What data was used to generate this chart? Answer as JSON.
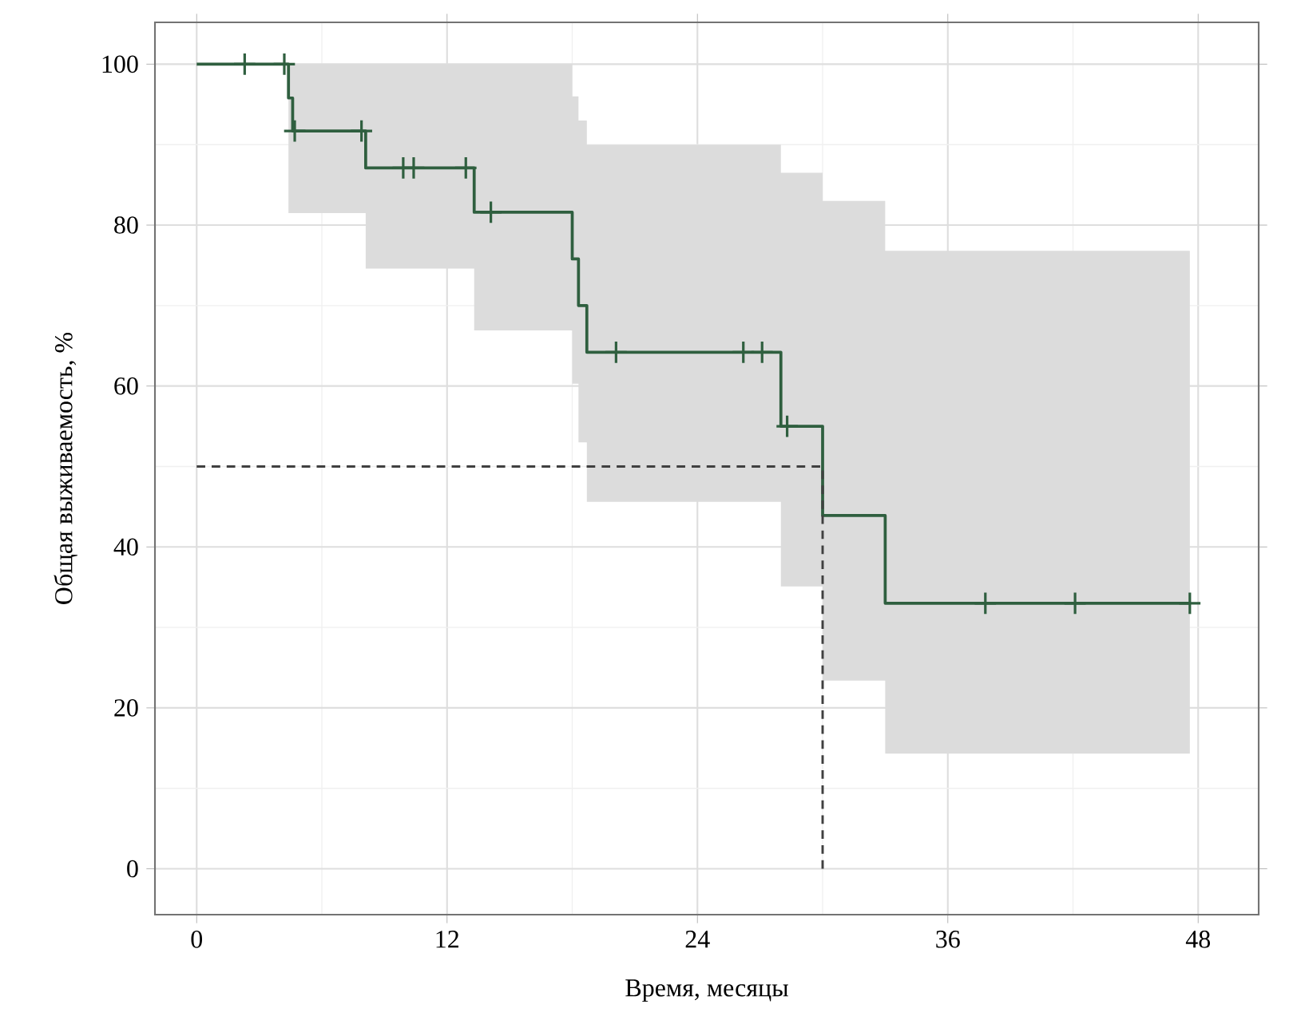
{
  "chart_data": {
    "type": "step",
    "xlabel": "Время, месяцы",
    "ylabel": "Общая выживаемость, %",
    "xlim": [
      -2,
      50.9
    ],
    "ylim": [
      -5.7,
      105.2
    ],
    "xticks": [
      0,
      12,
      24,
      36,
      48
    ],
    "yticks": [
      0,
      20,
      40,
      60,
      80,
      100
    ],
    "grid": true,
    "series": [
      {
        "color": "#2f5f3f",
        "x": [
          0,
          4.4,
          4.6,
          8.1,
          13.3,
          18.0,
          18.3,
          18.7,
          28.0,
          30.0,
          33.0,
          47.6
        ],
        "values": [
          100,
          95.8,
          91.7,
          87.1,
          81.6,
          75.8,
          70,
          64.2,
          55,
          43.9,
          33,
          33
        ],
        "lower": [
          100,
          81.5,
          81.5,
          74.6,
          66.9,
          60.3,
          53,
          45.6,
          35.1,
          23.4,
          14.3,
          14.3
        ],
        "upper": [
          100,
          100,
          100,
          100,
          100,
          96,
          93,
          90,
          86.5,
          83,
          76.8,
          76.8
        ]
      },
      {
        "type": "scatter",
        "marker": "cross",
        "color": "#2f5f3f",
        "x": [
          2.3,
          4.2,
          4.7,
          7.9,
          9.9,
          10.4,
          12.9,
          14.1,
          20.1,
          26.2,
          27.1,
          28.3,
          37.8,
          42.1,
          47.6
        ],
        "values": [
          100,
          100,
          91.7,
          91.7,
          87.1,
          87.1,
          87.1,
          81.6,
          64.2,
          64.2,
          64.2,
          55,
          33,
          33,
          33
        ]
      },
      {
        "type": "line",
        "color": "#404040",
        "line_style": "dashed",
        "x": [
          30,
          30,
          0
        ],
        "values": [
          0,
          50,
          50
        ]
      }
    ]
  }
}
